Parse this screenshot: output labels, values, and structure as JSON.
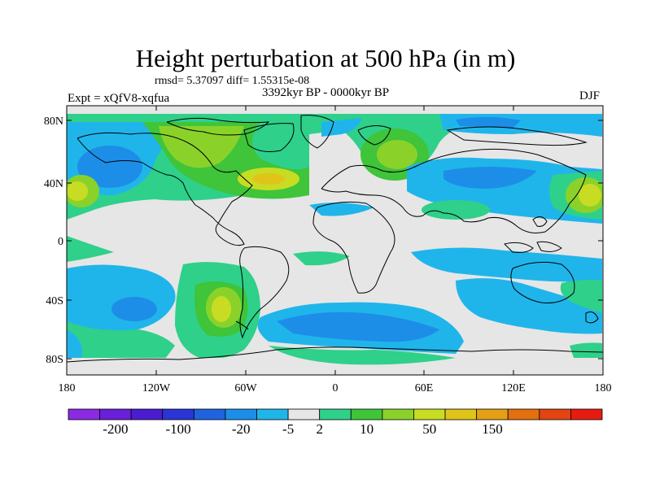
{
  "figure": {
    "title": "Height perturbation at 500 hPa (in m)",
    "stats": "rmsd= 5.37097 diff= 1.55315e-08",
    "period": "3392kyr BP - 0000kyr BP",
    "experiment": "Expt = xQfV8-xqfua",
    "season": "DJF"
  },
  "axes": {
    "lat_labels": [
      "80N",
      "40N",
      "0",
      "40S",
      "80S"
    ],
    "lon_labels": [
      "180",
      "120W",
      "60W",
      "0",
      "60E",
      "120E",
      "180"
    ]
  },
  "colorbar": {
    "colors": [
      "#8a2be2",
      "#6a1fd8",
      "#4b1cd0",
      "#2a35d6",
      "#1f63e0",
      "#1c8ee8",
      "#20b5ea",
      "#e6e6e6",
      "#2fd08a",
      "#3fc43a",
      "#8ad22a",
      "#c8dc24",
      "#e0c419",
      "#e4a014",
      "#e2700f",
      "#e34510",
      "#e61c10"
    ],
    "labels": [
      "-200",
      "-100",
      "-20",
      "-5",
      "2",
      "10",
      "50",
      "150"
    ]
  }
}
